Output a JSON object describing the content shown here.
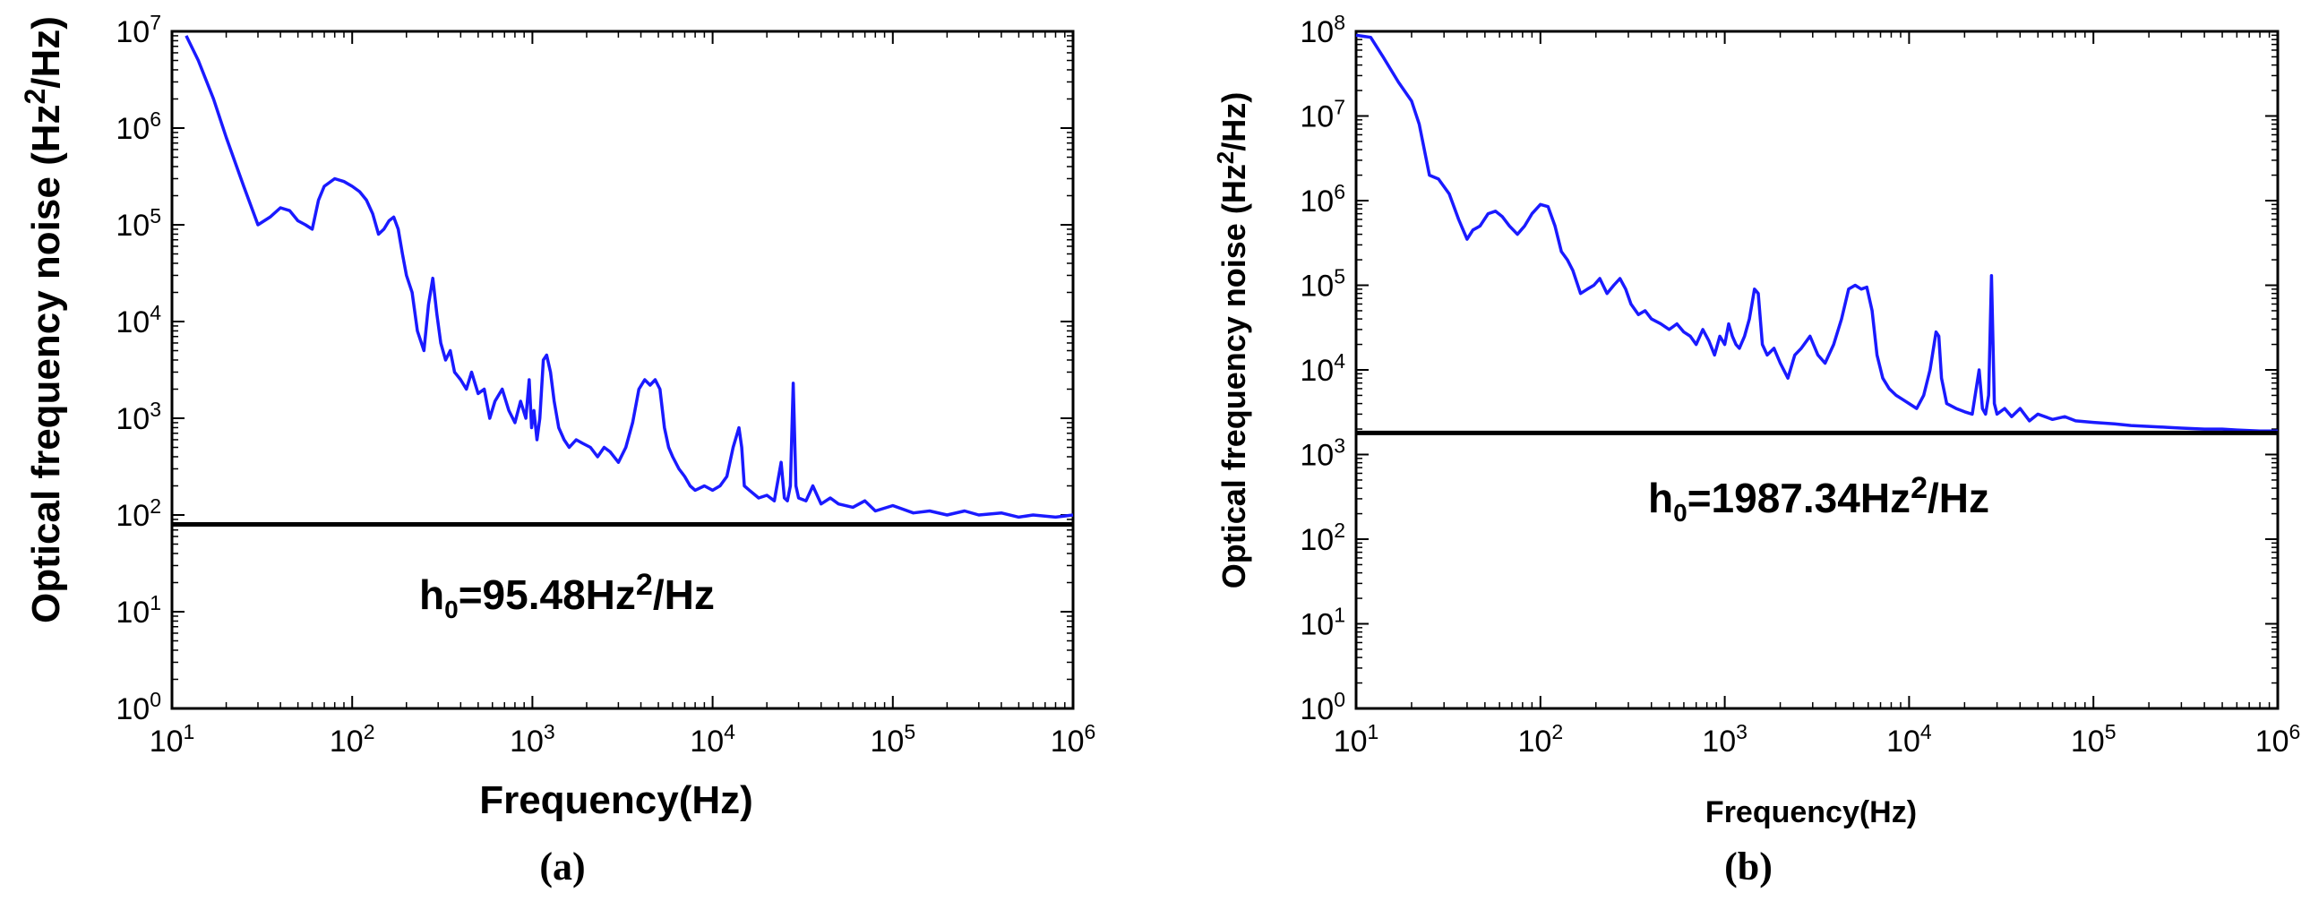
{
  "chart_data": [
    {
      "type": "line",
      "panel_label": "(a)",
      "xlabel": "Frequency(Hz)",
      "ylabel": "Optical frequency noise (Hz",
      "ylabel_sup": "2",
      "ylabel_end": "/Hz)",
      "x_scale": "log",
      "y_scale": "log",
      "xlim": [
        10,
        1000000
      ],
      "ylim": [
        1,
        10000000
      ],
      "x_ticks": [
        {
          "base": "10",
          "exp": "1"
        },
        {
          "base": "10",
          "exp": "2"
        },
        {
          "base": "10",
          "exp": "3"
        },
        {
          "base": "10",
          "exp": "4"
        },
        {
          "base": "10",
          "exp": "5"
        },
        {
          "base": "10",
          "exp": "6"
        }
      ],
      "y_ticks": [
        {
          "base": "10",
          "exp": "0"
        },
        {
          "base": "10",
          "exp": "1"
        },
        {
          "base": "10",
          "exp": "2"
        },
        {
          "base": "10",
          "exp": "3"
        },
        {
          "base": "10",
          "exp": "4"
        },
        {
          "base": "10",
          "exp": "5"
        },
        {
          "base": "10",
          "exp": "6"
        },
        {
          "base": "10",
          "exp": "7"
        }
      ],
      "annotation": {
        "main": "h",
        "sub": "0",
        "mid": "=95.48Hz",
        "sup": "2",
        "end": "/Hz"
      },
      "hline": 80,
      "series": [
        {
          "color": "#1a1aff",
          "x": [
            12,
            14,
            17,
            20,
            25,
            30,
            35,
            40,
            45,
            50,
            55,
            60,
            65,
            70,
            80,
            90,
            100,
            110,
            120,
            130,
            140,
            150,
            160,
            170,
            180,
            190,
            200,
            215,
            230,
            250,
            265,
            280,
            295,
            310,
            330,
            350,
            370,
            400,
            430,
            460,
            500,
            540,
            580,
            620,
            680,
            740,
            800,
            860,
            920,
            960,
            990,
            1020,
            1060,
            1100,
            1150,
            1200,
            1260,
            1320,
            1400,
            1500,
            1600,
            1750,
            1900,
            2100,
            2300,
            2500,
            2700,
            3000,
            3300,
            3600,
            3900,
            4200,
            4500,
            4800,
            5100,
            5400,
            5700,
            6000,
            6500,
            7000,
            7500,
            8000,
            9000,
            10000,
            11000,
            12000,
            13000,
            14000,
            14500,
            15000,
            16000,
            18000,
            20000,
            22000,
            24000,
            25000,
            26000,
            27000,
            28000,
            29000,
            30000,
            33000,
            36000,
            40000,
            45000,
            50000,
            60000,
            70000,
            80000,
            100000,
            130000,
            160000,
            200000,
            250000,
            300000,
            400000,
            500000,
            600000,
            800000,
            1000000
          ],
          "y": [
            9000000,
            5000000,
            2000000,
            800000,
            250000,
            100000,
            120000,
            150000,
            140000,
            110000,
            100000,
            90000,
            180000,
            250000,
            300000,
            280000,
            250000,
            220000,
            180000,
            130000,
            80000,
            90000,
            110000,
            120000,
            90000,
            50000,
            30000,
            20000,
            8000,
            5000,
            15000,
            28000,
            12000,
            6000,
            4000,
            5000,
            3000,
            2500,
            2000,
            3000,
            1800,
            2000,
            1000,
            1500,
            2000,
            1200,
            900,
            1500,
            1000,
            2500,
            800,
            1200,
            600,
            1000,
            4000,
            4500,
            3000,
            1500,
            800,
            600,
            500,
            600,
            550,
            500,
            400,
            500,
            450,
            350,
            500,
            900,
            2000,
            2500,
            2200,
            2500,
            2000,
            800,
            500,
            400,
            300,
            250,
            200,
            180,
            200,
            180,
            200,
            250,
            500,
            800,
            500,
            200,
            180,
            150,
            160,
            140,
            350,
            150,
            140,
            200,
            2300,
            200,
            150,
            140,
            200,
            130,
            150,
            130,
            120,
            140,
            110,
            125,
            105,
            110,
            100,
            110,
            100,
            105,
            95,
            100,
            95,
            100
          ]
        }
      ]
    },
    {
      "type": "line",
      "panel_label": "(b)",
      "xlabel": "Frequency(Hz)",
      "ylabel": "Optical frequency noise (Hz",
      "ylabel_sup": "2",
      "ylabel_end": "/Hz)",
      "x_scale": "log",
      "y_scale": "log",
      "xlim": [
        10,
        1000000
      ],
      "ylim": [
        1,
        100000000
      ],
      "x_ticks": [
        {
          "base": "10",
          "exp": "1"
        },
        {
          "base": "10",
          "exp": "2"
        },
        {
          "base": "10",
          "exp": "3"
        },
        {
          "base": "10",
          "exp": "4"
        },
        {
          "base": "10",
          "exp": "5"
        },
        {
          "base": "10",
          "exp": "6"
        }
      ],
      "y_ticks": [
        {
          "base": "10",
          "exp": "0"
        },
        {
          "base": "10",
          "exp": "1"
        },
        {
          "base": "10",
          "exp": "2"
        },
        {
          "base": "10",
          "exp": "3"
        },
        {
          "base": "10",
          "exp": "4"
        },
        {
          "base": "10",
          "exp": "5"
        },
        {
          "base": "10",
          "exp": "6"
        },
        {
          "base": "10",
          "exp": "7"
        },
        {
          "base": "10",
          "exp": "8"
        }
      ],
      "annotation": {
        "main": "h",
        "sub": "0",
        "mid": "=1987.34Hz",
        "sup": "2",
        "end": "/Hz"
      },
      "hline": 1800,
      "series": [
        {
          "color": "#1a1aff",
          "x": [
            10,
            12,
            14,
            17,
            20,
            22,
            25,
            28,
            32,
            36,
            40,
            43,
            47,
            52,
            57,
            62,
            68,
            75,
            82,
            90,
            100,
            110,
            120,
            130,
            140,
            150,
            165,
            180,
            195,
            210,
            230,
            250,
            270,
            290,
            310,
            340,
            370,
            400,
            450,
            500,
            550,
            600,
            650,
            700,
            760,
            820,
            880,
            940,
            1000,
            1050,
            1100,
            1150,
            1200,
            1280,
            1360,
            1450,
            1520,
            1600,
            1700,
            1850,
            2000,
            2200,
            2400,
            2600,
            2900,
            3200,
            3500,
            3900,
            4300,
            4700,
            5100,
            5500,
            5900,
            6300,
            6700,
            7200,
            7800,
            8500,
            9200,
            10000,
            11000,
            12000,
            13000,
            14000,
            14500,
            15000,
            16000,
            18000,
            20000,
            22000,
            24000,
            25000,
            26000,
            27000,
            28000,
            29000,
            30000,
            33000,
            36000,
            40000,
            45000,
            50000,
            60000,
            70000,
            80000,
            100000,
            130000,
            160000,
            200000,
            250000,
            300000,
            400000,
            500000,
            600000,
            800000,
            1000000
          ],
          "y": [
            90000000,
            85000000,
            50000000,
            25000000,
            15000000,
            8000000,
            2000000,
            1800000,
            1200000,
            600000,
            350000,
            450000,
            500000,
            700000,
            750000,
            650000,
            500000,
            400000,
            500000,
            700000,
            900000,
            850000,
            500000,
            250000,
            200000,
            150000,
            80000,
            90000,
            100000,
            120000,
            80000,
            100000,
            120000,
            90000,
            60000,
            45000,
            50000,
            40000,
            35000,
            30000,
            35000,
            28000,
            25000,
            20000,
            30000,
            22000,
            15000,
            25000,
            20000,
            35000,
            25000,
            20000,
            18000,
            25000,
            40000,
            90000,
            80000,
            20000,
            15000,
            18000,
            12000,
            8000,
            15000,
            18000,
            25000,
            15000,
            12000,
            20000,
            40000,
            90000,
            100000,
            90000,
            95000,
            50000,
            15000,
            8000,
            6000,
            5000,
            4500,
            4000,
            3500,
            5000,
            10000,
            28000,
            25000,
            8000,
            4000,
            3500,
            3200,
            3000,
            10000,
            3500,
            3000,
            5000,
            130000,
            4000,
            3000,
            3500,
            2800,
            3500,
            2500,
            3000,
            2600,
            2800,
            2500,
            2400,
            2300,
            2200,
            2150,
            2100,
            2050,
            2000,
            2000,
            1950,
            1900,
            1900
          ]
        }
      ]
    }
  ]
}
